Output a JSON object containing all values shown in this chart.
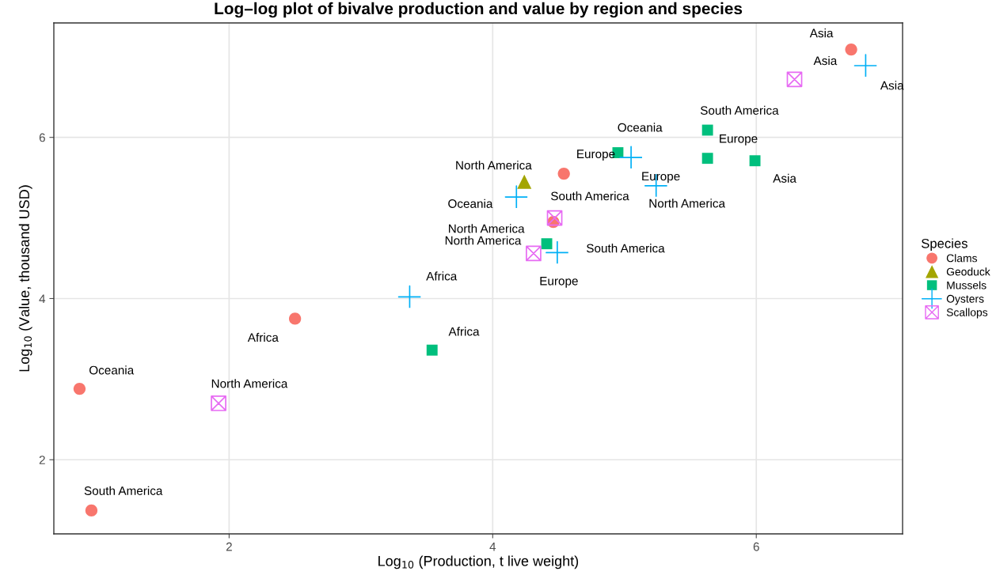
{
  "chart_data": {
    "type": "scatter",
    "title": "Log–log plot of bivalve production and value by region and species",
    "xlabel": "Log$_{10}$ (Production, t live weight)",
    "ylabel": "Log$_{10}$ (Value, thousand USD)",
    "legend_title": "Species",
    "legend": "right",
    "grid": true,
    "xlim": [
      0.67,
      7.11
    ],
    "ylim": [
      1.08,
      7.42
    ],
    "xticks": [
      2,
      4,
      6
    ],
    "yticks": [
      2,
      4,
      6
    ],
    "series": [
      {
        "name": "Clams",
        "color": "#f8766d",
        "marker": "circle",
        "x": [
          6.72,
          4.54,
          4.46,
          2.5,
          0.865,
          0.955
        ],
        "values": [
          7.09,
          5.55,
          4.95,
          3.75,
          2.88,
          1.37
        ]
      },
      {
        "name": "Geoduck",
        "color": "#a3a500",
        "marker": "triangle",
        "x": [
          4.24
        ],
        "values": [
          5.45
        ]
      },
      {
        "name": "Mussels",
        "color": "#00bf7d",
        "marker": "square",
        "x": [
          5.63,
          4.95,
          5.63,
          5.99,
          4.41,
          3.54
        ],
        "values": [
          6.09,
          5.81,
          5.74,
          5.71,
          4.68,
          3.36
        ]
      },
      {
        "name": "Oysters",
        "color": "#00b0f6",
        "marker": "cross",
        "x": [
          6.83,
          5.05,
          5.24,
          4.18,
          4.49,
          3.37
        ],
        "values": [
          6.89,
          5.75,
          5.4,
          5.26,
          4.57,
          4.02
        ]
      },
      {
        "name": "Scallops",
        "color": "#e76bf3",
        "x": [
          6.29,
          4.47,
          4.31,
          1.92
        ],
        "values": [
          6.72,
          5.0,
          4.56,
          2.7
        ]
      }
    ],
    "annotations": [
      {
        "text": "Asia",
        "x": 6.72,
        "y": 7.09
      },
      {
        "text": "Asia",
        "x": 6.83,
        "y": 6.89
      },
      {
        "text": "Asia",
        "x": 6.29,
        "y": 6.72
      },
      {
        "text": "South America",
        "x": 5.63,
        "y": 6.09
      },
      {
        "text": "Oceania",
        "x": 4.95,
        "y": 5.81
      },
      {
        "text": "Europe",
        "x": 5.63,
        "y": 5.74
      },
      {
        "text": "Asia",
        "x": 5.99,
        "y": 5.71
      },
      {
        "text": "Europe",
        "x": 5.05,
        "y": 5.75
      },
      {
        "text": "North America",
        "x": 5.24,
        "y": 5.4
      },
      {
        "text": "North America",
        "x": 4.24,
        "y": 5.45
      },
      {
        "text": "Europe",
        "x": 4.54,
        "y": 5.55
      },
      {
        "text": "Oceania",
        "x": 4.18,
        "y": 5.26
      },
      {
        "text": "South America",
        "x": 4.47,
        "y": 5.0
      },
      {
        "text": "North America",
        "x": 4.46,
        "y": 4.95
      },
      {
        "text": "North America",
        "x": 4.41,
        "y": 4.68
      },
      {
        "text": "Europe",
        "x": 4.31,
        "y": 4.56
      },
      {
        "text": "South America",
        "x": 4.49,
        "y": 4.57
      },
      {
        "text": "Africa",
        "x": 3.37,
        "y": 4.02
      },
      {
        "text": "Africa",
        "x": 3.54,
        "y": 3.36
      },
      {
        "text": "Africa",
        "x": 2.5,
        "y": 3.75
      },
      {
        "text": "Oceania",
        "x": 0.865,
        "y": 2.88
      },
      {
        "text": "North America",
        "x": 1.92,
        "y": 2.7
      },
      {
        "text": "South America",
        "x": 0.955,
        "y": 1.37
      }
    ]
  }
}
